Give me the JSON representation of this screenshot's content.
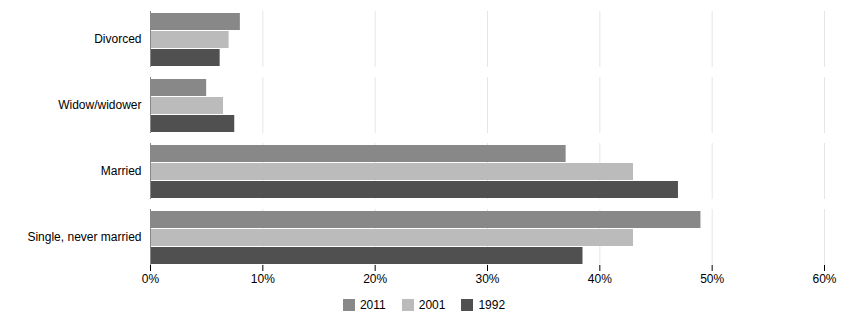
{
  "chart_data": {
    "type": "bar",
    "orientation": "horizontal",
    "categories": [
      "Single, never married",
      "Married",
      "Widow/widower",
      "Divorced"
    ],
    "series": [
      {
        "name": "2011",
        "color": "#888888",
        "values": [
          0.49,
          0.37,
          0.05,
          0.08
        ]
      },
      {
        "name": "2001",
        "color": "#bbbbbb",
        "values": [
          0.43,
          0.43,
          0.065,
          0.07
        ]
      },
      {
        "name": "1992",
        "color": "#505050",
        "values": [
          0.385,
          0.47,
          0.075,
          0.062
        ]
      }
    ],
    "xlim": [
      0,
      0.6
    ],
    "xticks": [
      {
        "value": 0.0,
        "label": "0%"
      },
      {
        "value": 0.1,
        "label": "10%"
      },
      {
        "value": 0.2,
        "label": "20%"
      },
      {
        "value": 0.3,
        "label": "30%"
      },
      {
        "value": 0.4,
        "label": "40%"
      },
      {
        "value": 0.5,
        "label": "50%"
      },
      {
        "value": 0.6,
        "label": "60%"
      }
    ],
    "grid": true,
    "legend": "bottom"
  }
}
